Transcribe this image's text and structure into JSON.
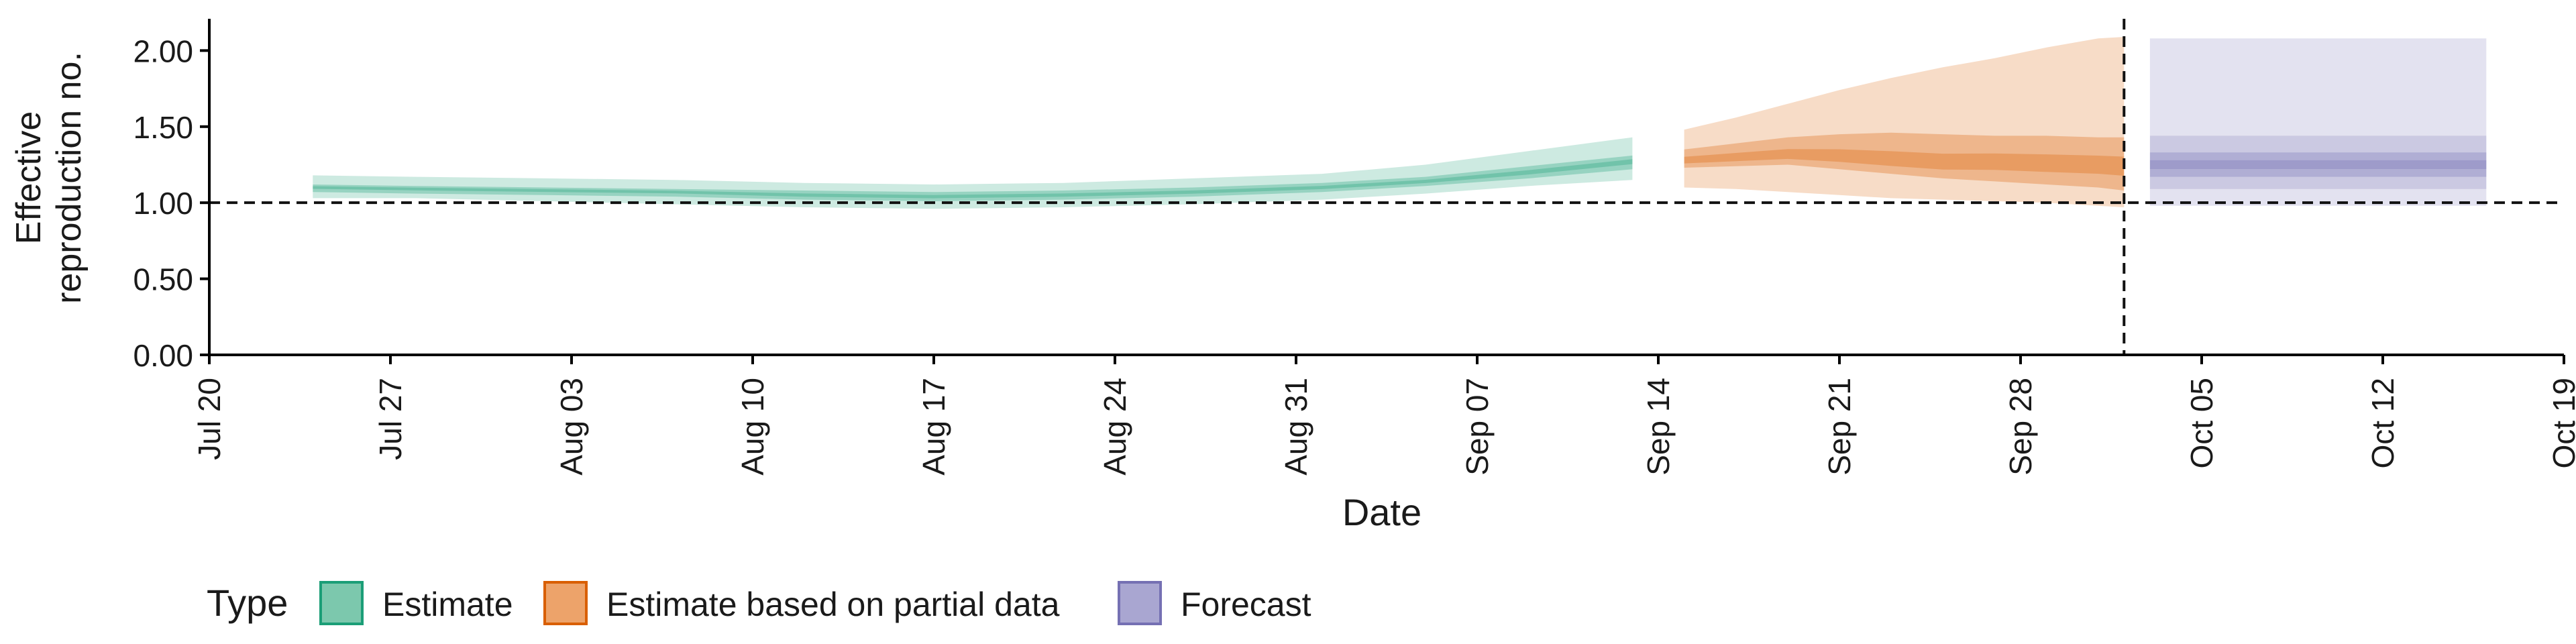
{
  "chart_data": {
    "type": "area",
    "xlabel": "Date",
    "ylabel_lines": [
      "Effective",
      "reproduction no."
    ],
    "ylim": [
      0,
      2.2
    ],
    "xlim": [
      "2020-07-20",
      "2020-10-19"
    ],
    "y_ticks": [
      0,
      0.5,
      1.0,
      1.5,
      2.0
    ],
    "y_tick_labels": [
      "0.00",
      "0.50",
      "1.00",
      "1.50",
      "2.00"
    ],
    "x_ticks": [
      "2020-07-20",
      "2020-07-27",
      "2020-08-03",
      "2020-08-10",
      "2020-08-17",
      "2020-08-24",
      "2020-08-31",
      "2020-09-07",
      "2020-09-14",
      "2020-09-21",
      "2020-09-28",
      "2020-10-05",
      "2020-10-12",
      "2020-10-19"
    ],
    "x_tick_labels": [
      "Jul 20",
      "Jul 27",
      "Aug 03",
      "Aug 10",
      "Aug 17",
      "Aug 24",
      "Aug 31",
      "Sep 07",
      "Sep 14",
      "Sep 21",
      "Sep 28",
      "Oct 05",
      "Oct 12",
      "Oct 19"
    ],
    "reference_hline": 1.0,
    "reference_vline": "2020-10-02",
    "grid": false,
    "legend": {
      "title": "Type",
      "position": "bottom-left",
      "items": [
        {
          "label": "Estimate",
          "fill": "#7cc8ad",
          "stroke": "#1b9e77"
        },
        {
          "label": "Estimate based on partial data",
          "fill": "#eda36a",
          "stroke": "#d95f02"
        },
        {
          "label": "Forecast",
          "fill": "#a9a6d1",
          "stroke": "#7570b3"
        }
      ]
    },
    "series": [
      {
        "name": "Estimate",
        "color": "#1b9e77",
        "dates": [
          "2020-07-24",
          "2020-07-28",
          "2020-08-02",
          "2020-08-07",
          "2020-08-12",
          "2020-08-17",
          "2020-08-22",
          "2020-08-27",
          "2020-09-01",
          "2020-09-05",
          "2020-09-09",
          "2020-09-13"
        ],
        "median": [
          1.1,
          1.09,
          1.08,
          1.07,
          1.05,
          1.04,
          1.05,
          1.07,
          1.1,
          1.14,
          1.2,
          1.27
        ],
        "lower_50": [
          1.07,
          1.06,
          1.05,
          1.04,
          1.02,
          1.01,
          1.02,
          1.04,
          1.07,
          1.11,
          1.16,
          1.22
        ],
        "upper_50": [
          1.12,
          1.11,
          1.1,
          1.09,
          1.08,
          1.07,
          1.08,
          1.1,
          1.13,
          1.17,
          1.24,
          1.31
        ],
        "lower_90": [
          1.03,
          1.03,
          1.01,
          0.99,
          0.97,
          0.96,
          0.97,
          0.99,
          1.02,
          1.06,
          1.11,
          1.15
        ],
        "upper_90": [
          1.18,
          1.17,
          1.16,
          1.15,
          1.13,
          1.12,
          1.13,
          1.16,
          1.19,
          1.25,
          1.34,
          1.43
        ]
      },
      {
        "name": "Estimate based on partial data",
        "color": "#d95f02",
        "dates": [
          "2020-09-15",
          "2020-09-17",
          "2020-09-19",
          "2020-09-21",
          "2020-09-23",
          "2020-09-25",
          "2020-09-27",
          "2020-09-29",
          "2020-10-01",
          "2020-10-02"
        ],
        "median": [
          1.28,
          1.3,
          1.32,
          1.31,
          1.29,
          1.27,
          1.27,
          1.26,
          1.25,
          1.24
        ],
        "lower_50": [
          1.23,
          1.24,
          1.25,
          1.22,
          1.19,
          1.16,
          1.14,
          1.12,
          1.1,
          1.08
        ],
        "upper_50": [
          1.35,
          1.39,
          1.43,
          1.45,
          1.46,
          1.45,
          1.44,
          1.44,
          1.43,
          1.43
        ],
        "lower_90": [
          1.1,
          1.09,
          1.07,
          1.05,
          1.03,
          1.02,
          1.01,
          1.0,
          0.98,
          0.97
        ],
        "upper_90": [
          1.48,
          1.56,
          1.65,
          1.74,
          1.82,
          1.89,
          1.95,
          2.02,
          2.08,
          2.09
        ]
      },
      {
        "name": "Forecast",
        "color": "#7570b3",
        "dates": [
          "2020-10-03",
          "2020-10-16"
        ],
        "median": [
          1.25,
          1.25
        ],
        "lower_50": [
          1.17,
          1.17
        ],
        "upper_50": [
          1.33,
          1.33
        ],
        "lower_90": [
          1.09,
          1.09
        ],
        "upper_90": [
          1.44,
          1.44
        ],
        "lower_outer": [
          0.98,
          0.98
        ],
        "upper_outer": [
          2.08,
          2.08
        ]
      }
    ]
  }
}
